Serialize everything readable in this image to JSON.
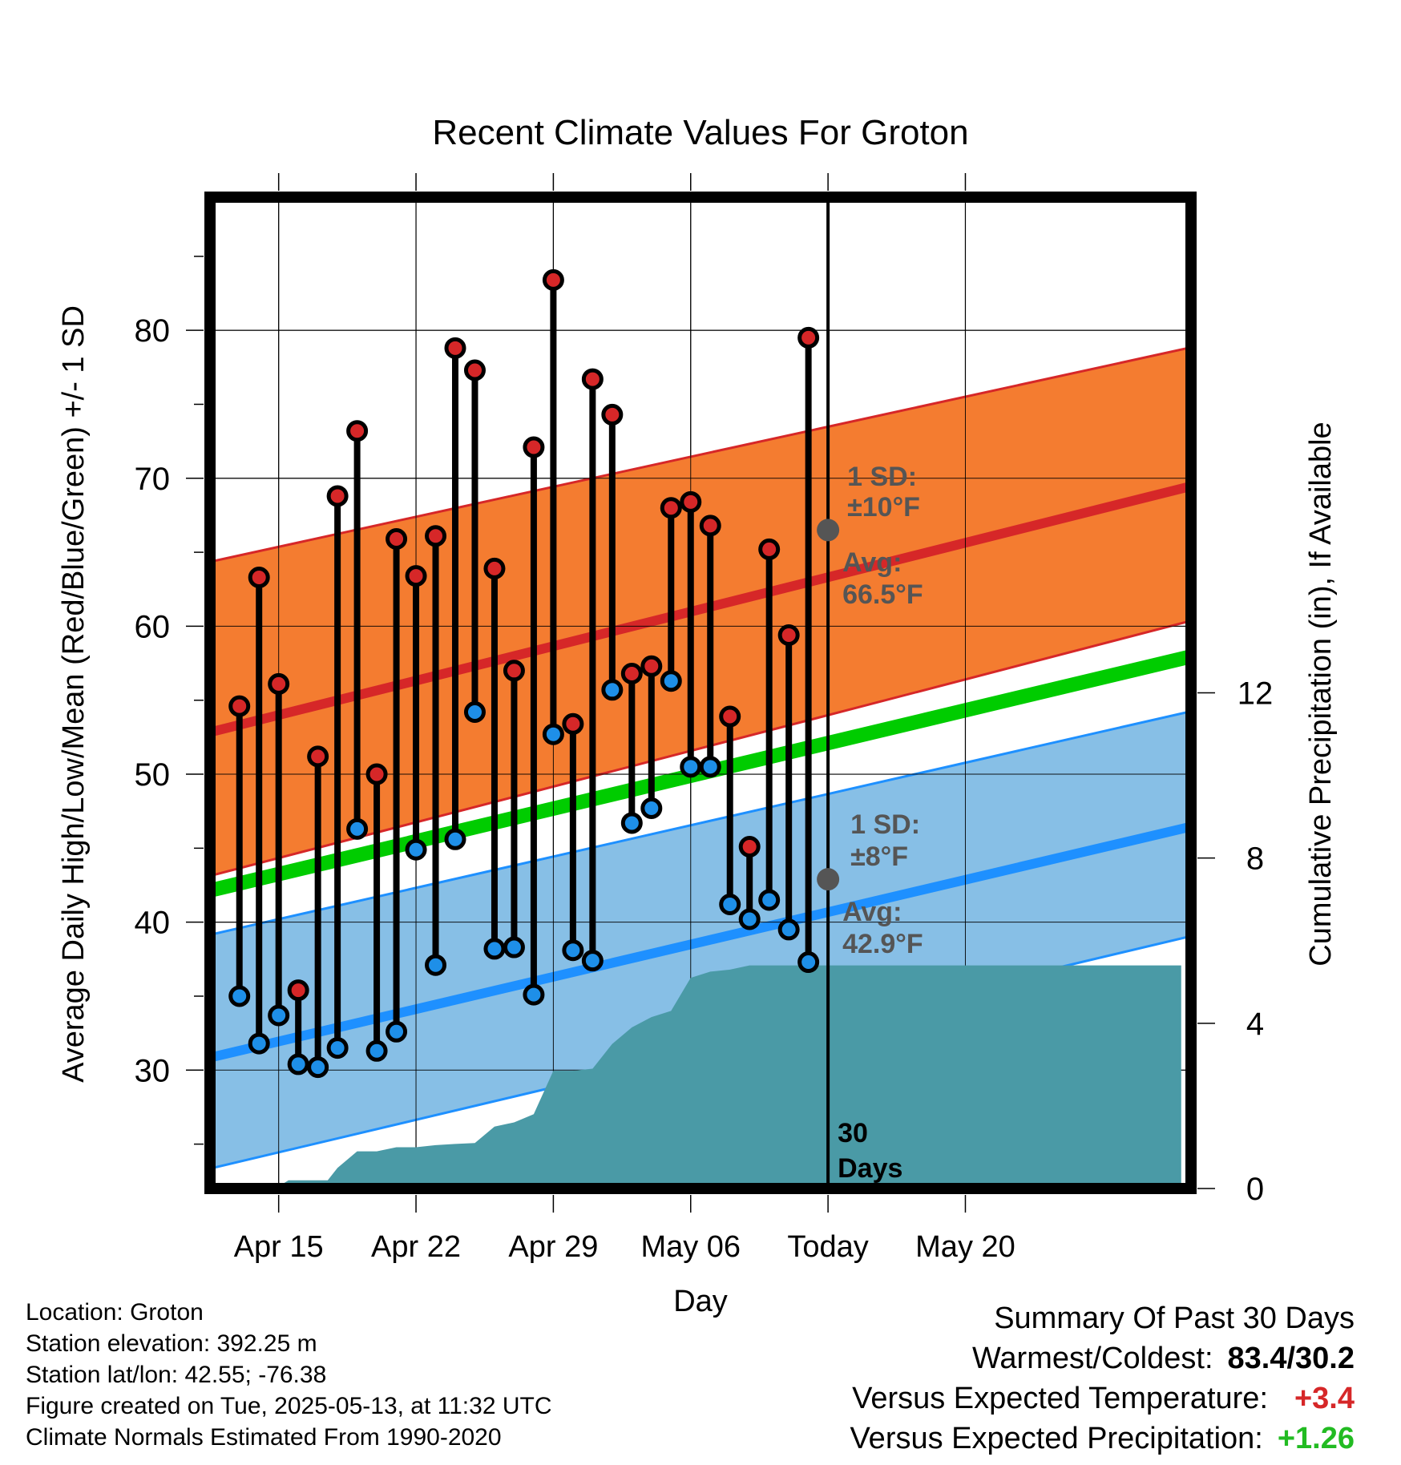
{
  "chart_data": {
    "type": "line",
    "title": "Recent Climate Values For Groton",
    "xlabel": "Day",
    "ylabel": "Average Daily High/Low/Mean (Red/Blue/Green) +/- 1 SD",
    "y2label": "Cumulative Precipitation (in), If Available",
    "xlim": [
      11.5,
      61.5
    ],
    "ylim": [
      22,
      89
    ],
    "y2lim": [
      0,
      24
    ],
    "x_ticks": [
      {
        "x": 15,
        "label": "Apr 15"
      },
      {
        "x": 22,
        "label": "Apr 22"
      },
      {
        "x": 29,
        "label": "Apr 29"
      },
      {
        "x": 36,
        "label": "May 06"
      },
      {
        "x": 43,
        "label": "Today"
      },
      {
        "x": 50,
        "label": "May 20"
      }
    ],
    "y_ticks": [
      30,
      40,
      50,
      60,
      70,
      80
    ],
    "y2_ticks": [
      0,
      4,
      8,
      12
    ],
    "today_x": 43,
    "today_label": [
      "30",
      "Days"
    ],
    "normals": {
      "x": [
        12,
        61
      ],
      "high_avg": [
        53,
        69.3
      ],
      "high_upper": [
        64.5,
        78.7
      ],
      "high_lower": [
        43.3,
        60.2
      ],
      "low_avg": [
        31,
        46.3
      ],
      "low_upper": [
        39.3,
        54.1
      ],
      "low_lower": [
        23.5,
        38.9
      ],
      "mean_avg": [
        42.3,
        57.8
      ]
    },
    "daily_highs": [
      54.6,
      63.3,
      56.1,
      35.4,
      51.2,
      68.8,
      73.2,
      50.0,
      65.9,
      63.4,
      66.1,
      78.8,
      77.3,
      63.9,
      57.0,
      72.1,
      83.4,
      53.4,
      76.7,
      74.3,
      56.8,
      57.3,
      68.0,
      68.4,
      66.8,
      53.9,
      45.1,
      65.2,
      59.4,
      79.5
    ],
    "daily_lows": [
      35.0,
      31.8,
      33.7,
      30.4,
      30.2,
      31.5,
      46.3,
      31.3,
      32.6,
      44.9,
      37.1,
      45.6,
      54.2,
      38.2,
      38.3,
      35.1,
      52.7,
      38.1,
      37.4,
      55.7,
      46.7,
      47.7,
      56.3,
      50.5,
      50.5,
      41.2,
      40.2,
      41.5,
      39.5,
      37.3
    ],
    "days_x": [
      13,
      14,
      15,
      16,
      17,
      18,
      19,
      20,
      21,
      22,
      23,
      24,
      25,
      26,
      27,
      28,
      29,
      30,
      31,
      32,
      33,
      34,
      35,
      36,
      37,
      38,
      39,
      40,
      41,
      42
    ],
    "precip": {
      "x": [
        14,
        15,
        15.5,
        16.5,
        17.5,
        18,
        19,
        20,
        21,
        22,
        23,
        24,
        25,
        26,
        27,
        28,
        29,
        30,
        31,
        32,
        33,
        34,
        35,
        36,
        37,
        38,
        39,
        40,
        61
      ],
      "y": [
        0,
        0.05,
        0.2,
        0.2,
        0.2,
        0.5,
        0.9,
        0.9,
        1.0,
        1.0,
        1.05,
        1.08,
        1.1,
        1.5,
        1.6,
        1.8,
        2.85,
        2.85,
        2.9,
        3.5,
        3.9,
        4.15,
        4.3,
        5.1,
        5.25,
        5.3,
        5.4,
        5.4,
        5.4
      ]
    },
    "annotations": {
      "high_sd": [
        "1 SD:",
        "±10°F"
      ],
      "high_avg": [
        "Avg:",
        "66.5°F"
      ],
      "low_sd": [
        "1 SD:",
        "±8°F"
      ],
      "low_avg": [
        "Avg:",
        "42.9°F"
      ],
      "high_avg_today": 66.5,
      "low_avg_today": 42.9
    },
    "colors": {
      "high_band": "#f47c30",
      "high_line": "#d62728",
      "low_band": "#87bfe6",
      "low_line": "#1e90ff",
      "mean_line": "#00cc00",
      "precip": "#4a9aa6",
      "high_dot": "#d62728",
      "low_dot": "#1e8fe8",
      "annot": "#555555"
    }
  },
  "info": {
    "location": "Location: Groton",
    "elevation": "Station elevation: 392.25 m",
    "latlon": "Station lat/lon: 42.55; -76.38",
    "created": "Figure created on Tue, 2025-05-13, at 11:32 UTC",
    "normals": "Climate Normals Estimated From 1990-2020"
  },
  "summary": {
    "title": "Summary Of Past 30 Days",
    "warm_label": "Warmest/Coldest:",
    "warm_value": "83.4/30.2",
    "temp_label": "Versus Expected Temperature:",
    "temp_value": "+3.4",
    "precip_label": "Versus Expected Precipitation:",
    "precip_value": "+1.26"
  }
}
